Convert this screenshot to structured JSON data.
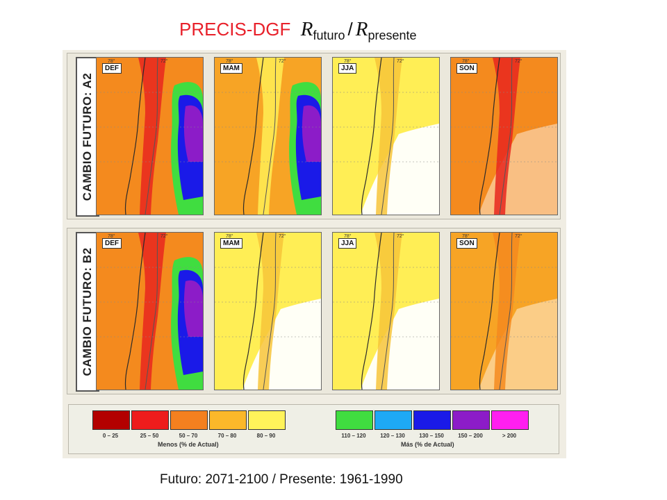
{
  "title": {
    "model": "PRECIS-DGF",
    "ratio_symbol": "R",
    "numerator_sub": "futuro",
    "separator": "/",
    "denominator_sub": "presente"
  },
  "rows": [
    {
      "scenario": "CAMBIO FUTURO: A2",
      "panels": [
        {
          "season": "DEF",
          "tone": "#f48a1e",
          "accent": "#e8261e",
          "blue": true
        },
        {
          "season": "MAM",
          "tone": "#f7a425",
          "accent": "#ffee55",
          "blue": true
        },
        {
          "season": "JJA",
          "tone": "#ffee55",
          "accent": "#f7c43a",
          "blue": false
        },
        {
          "season": "SON",
          "tone": "#f48a1e",
          "accent": "#e8261e",
          "blue": false
        }
      ]
    },
    {
      "scenario": "CAMBIO FUTURO: B2",
      "panels": [
        {
          "season": "DEF",
          "tone": "#f48a1e",
          "accent": "#e8261e",
          "blue": true
        },
        {
          "season": "MAM",
          "tone": "#ffee55",
          "accent": "#f7c43a",
          "blue": false
        },
        {
          "season": "JJA",
          "tone": "#ffee55",
          "accent": "#f7c43a",
          "blue": false
        },
        {
          "season": "SON",
          "tone": "#f7a425",
          "accent": "#f48a1e",
          "blue": false
        }
      ]
    }
  ],
  "longitude_labels": [
    "78°",
    "72°"
  ],
  "legend": {
    "less_group": "Menos (% de Actual)",
    "more_group": "Más (% de Actual)",
    "less": [
      {
        "label": "0 – 25",
        "color": "#b30000"
      },
      {
        "label": "25 – 50",
        "color": "#ee1c1c"
      },
      {
        "label": "50 – 70",
        "color": "#f4801f"
      },
      {
        "label": "70 – 80",
        "color": "#fbb82a"
      },
      {
        "label": "80 – 90",
        "color": "#fff35a"
      }
    ],
    "more": [
      {
        "label": "110 – 120",
        "color": "#40dd40"
      },
      {
        "label": "120 – 130",
        "color": "#1ea9f5"
      },
      {
        "label": "130 – 150",
        "color": "#1a1ae8"
      },
      {
        "label": "150 – 200",
        "color": "#8c1cc8"
      },
      {
        "label": "> 200",
        "color": "#ff1ff0"
      }
    ]
  },
  "caption": "Futuro: 2071-2100 / Presente: 1961-1990"
}
